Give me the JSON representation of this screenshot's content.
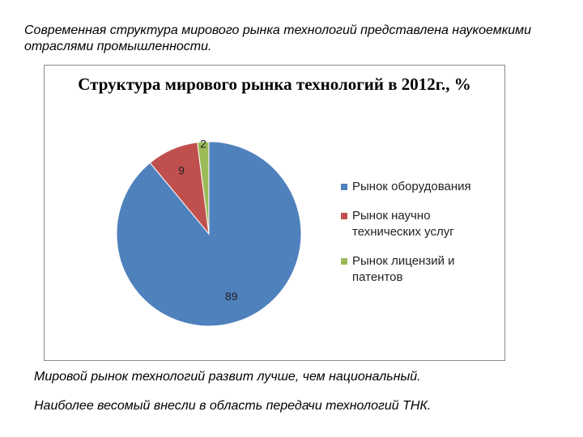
{
  "intro_text": "Современная структура мирового рынка технологий представлена наукоемкими отраслями промышленности.",
  "chart_data": {
    "type": "pie",
    "title": "Структура мирового рынка технологий в 2012г., %",
    "categories": [
      "Рынок оборудования",
      "Рынок научно технических услуг",
      "Рынок лицензий и патентов"
    ],
    "values": [
      89,
      9,
      2
    ],
    "data_labels": [
      "89",
      "9",
      "2"
    ],
    "colors": [
      "#4f81bd",
      "#c0504d",
      "#9bbb59"
    ],
    "legend_position": "right"
  },
  "footer": {
    "line1": "Мировой рынок технологий развит лучше, чем национальный.",
    "line2": "Наиболее весомый внесли в область передачи технологий ТНК."
  }
}
